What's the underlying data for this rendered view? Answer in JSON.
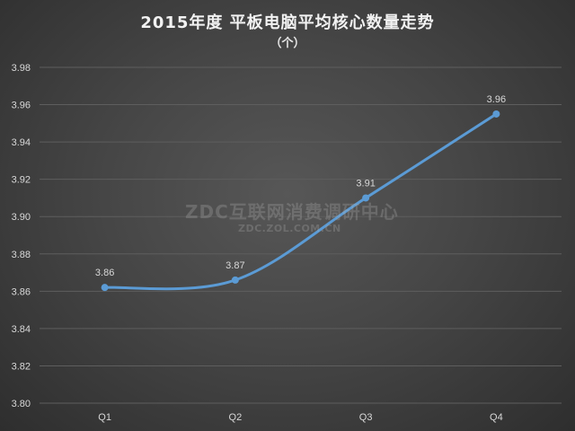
{
  "chart_data": {
    "type": "line",
    "title": "2015年度 平板电脑平均核心数量走势",
    "subtitle": "（个）",
    "categories": [
      "Q1",
      "Q2",
      "Q3",
      "Q4"
    ],
    "series": [
      {
        "values": [
          3.862,
          3.866,
          3.91,
          3.955
        ],
        "labels": [
          "3.86",
          "3.87",
          "3.91",
          "3.96"
        ]
      }
    ],
    "ylim": [
      3.8,
      3.98
    ],
    "yticks": [
      "3.80",
      "3.82",
      "3.84",
      "3.86",
      "3.88",
      "3.90",
      "3.92",
      "3.94",
      "3.96",
      "3.98"
    ],
    "grid": true,
    "smooth": true,
    "colors": {
      "line": "#5b9bd5",
      "grid": "#5e5e5e",
      "text": "#d9d9d9"
    }
  },
  "watermark": {
    "main": "ZDC互联网消费调研中心",
    "sub": "ZDC.ZOL.COM.CN"
  }
}
